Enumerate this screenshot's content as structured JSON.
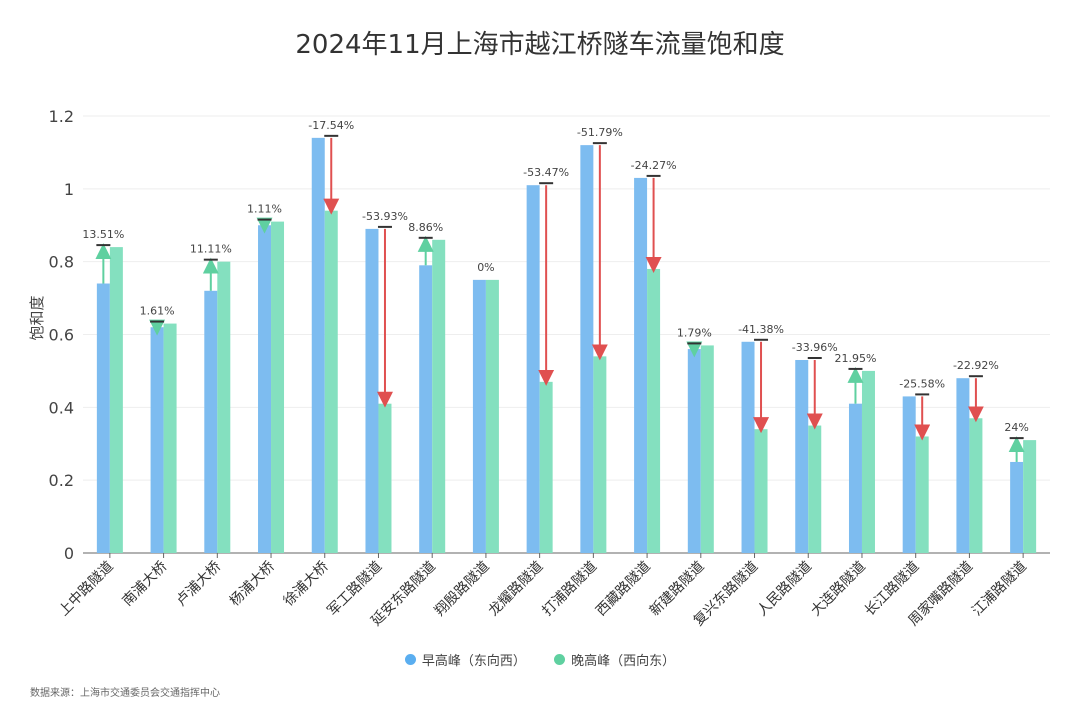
{
  "chart_data": {
    "type": "bar",
    "title": "2024年11月上海市越江桥隧车流量饱和度",
    "ylabel": "饱和度",
    "xlabel": "",
    "ylim": [
      0,
      1.2
    ],
    "yticks": [
      "0",
      "0.2",
      "0.4",
      "0.6",
      "0.8",
      "1",
      "1.2"
    ],
    "ytick_values": [
      0,
      0.2,
      0.4,
      0.6,
      0.8,
      1,
      1.2
    ],
    "grid": true,
    "legend_position": "bottom-center",
    "categories": [
      "上中路隧道",
      "南浦大桥",
      "卢浦大桥",
      "杨浦大桥",
      "徐浦大桥",
      "军工路隧道",
      "延安东路隧道",
      "翔殷路隧道",
      "龙耀路隧道",
      "打浦路隧道",
      "西藏路隧道",
      "新建路隧道",
      "复兴东路隧道",
      "人民路隧道",
      "大连路隧道",
      "长江路隧道",
      "周家嘴路隧道",
      "江浦路隧道"
    ],
    "series": [
      {
        "name": "早高峰（东向西）",
        "color": "#7dbcf0",
        "values": [
          0.74,
          0.62,
          0.72,
          0.9,
          1.14,
          0.89,
          0.79,
          0.75,
          1.01,
          1.12,
          1.03,
          0.56,
          0.58,
          0.53,
          0.41,
          0.43,
          0.48,
          0.25
        ]
      },
      {
        "name": "晚高峰（西向东）",
        "color": "#84e0bf",
        "values": [
          0.84,
          0.63,
          0.8,
          0.91,
          0.94,
          0.41,
          0.86,
          0.75,
          0.47,
          0.54,
          0.78,
          0.57,
          0.34,
          0.35,
          0.5,
          0.32,
          0.37,
          0.31
        ]
      }
    ],
    "change_labels": [
      "13.51%",
      "1.61%",
      "11.11%",
      "1.11%",
      "-17.54%",
      "-53.93%",
      "8.86%",
      "0%",
      "-53.47%",
      "-51.79%",
      "-24.27%",
      "1.79%",
      "-41.38%",
      "-33.96%",
      "21.95%",
      "-25.58%",
      "-22.92%",
      "24%"
    ],
    "up_color": "#5fd0a0",
    "down_color": "#e05050"
  },
  "source": "数据来源：上海市交通委员会交通指挥中心"
}
